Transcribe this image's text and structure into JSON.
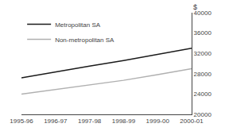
{
  "chart_data": {
    "type": "line",
    "categories": [
      "1995-96",
      "1996-97",
      "1997-98",
      "1998-99",
      "1999-00",
      "2000-01"
    ],
    "series": [
      {
        "name": "Metropolitan SA",
        "color": "#1a1a1a",
        "values": [
          27200,
          28400,
          29500,
          30600,
          31800,
          33000
        ]
      },
      {
        "name": "Non-metropolitan SA",
        "color": "#b0b0b0",
        "values": [
          24000,
          24900,
          25800,
          26700,
          27800,
          29000
        ]
      }
    ],
    "ylim": [
      20000,
      40000
    ],
    "yticks": [
      20000,
      24000,
      28000,
      32000,
      36000,
      40000
    ],
    "ylabel": "$",
    "grid": false,
    "legend": "upper left"
  }
}
